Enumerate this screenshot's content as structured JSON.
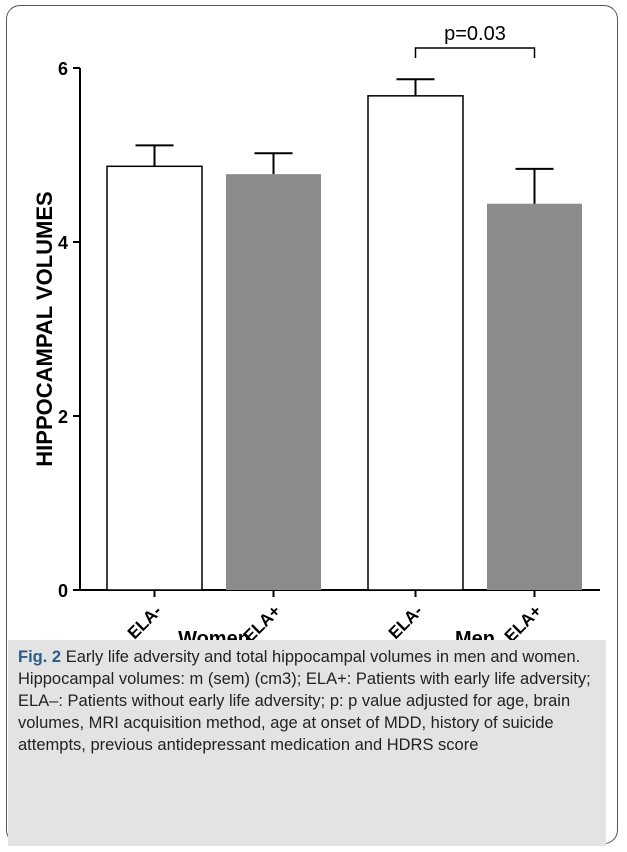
{
  "chart_data": {
    "type": "bar",
    "ylabel": "HIPPOCAMPAL VOLUMES",
    "ylim": [
      0,
      6
    ],
    "yticks": [
      "0",
      "2",
      "4",
      "6"
    ],
    "groups": [
      {
        "label": "Women",
        "bars": [
          {
            "label": "ELA-",
            "value": 4.87,
            "sem": 0.24
          },
          {
            "label": "ELA+",
            "value": 4.78,
            "sem": 0.24
          }
        ]
      },
      {
        "label": "Men",
        "bars": [
          {
            "label": "ELA-",
            "value": 5.68,
            "sem": 0.19
          },
          {
            "label": "ELA+",
            "value": 4.44,
            "sem": 0.4
          }
        ]
      }
    ],
    "annotation": "p=0.03",
    "colors": {
      "ELA-": "#ffffff",
      "ELA+": "#8c8c8c"
    }
  },
  "caption": {
    "label": "Fig. 2",
    "text": "Early life adversity and total hippocampal volumes in men and women. Hippocampal volumes: m (sem) (cm3); ELA+: Patients with early life adversity; ELA–: Patients without early life adversity; p: p value adjusted for age, brain volumes, MRI acquisition method, age at onset of MDD, history of suicide attempts, previous antidepressant medication and HDRS score"
  }
}
